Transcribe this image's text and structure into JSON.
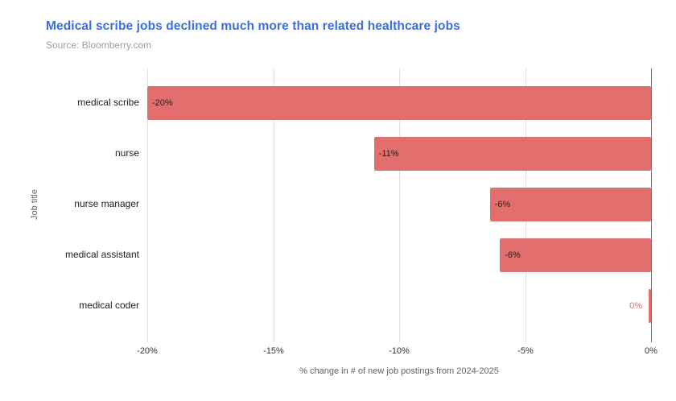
{
  "chart_data": {
    "type": "bar",
    "orientation": "horizontal",
    "title": "Medical scribe jobs declined much more than related healthcare jobs",
    "source": "Source: Bloomberry.com",
    "categories": [
      "medical scribe",
      "nurse",
      "nurse manager",
      "medical assistant",
      "medical coder"
    ],
    "values": [
      -20,
      -11,
      -6.4,
      -6,
      0
    ],
    "bar_labels": [
      "-20%",
      "-11%",
      "-6%",
      "-6%",
      "0%"
    ],
    "xlabel": "% change in # of new job postings from 2024-2025",
    "ylabel": "Job title",
    "xlim": [
      -20,
      0
    ],
    "x_ticks": [
      {
        "value": -20,
        "label": "-20%"
      },
      {
        "value": -15,
        "label": "-15%"
      },
      {
        "value": -10,
        "label": "-10%"
      },
      {
        "value": -5,
        "label": "-5%"
      },
      {
        "value": 0,
        "label": "0%"
      }
    ],
    "grid": "vertical-only",
    "legend": "none",
    "colors": {
      "bar": "#e26e6e",
      "title": "#3d6ee0",
      "source": "#9aa0a6",
      "grid": "#e0e0e0",
      "zero_line": "#757575",
      "bar_label_inside": "#212121",
      "bar_label_outside": "#e26e6e",
      "category_label": "#212121",
      "tick_label": "#333333",
      "axis_title": "#5f6368"
    }
  }
}
